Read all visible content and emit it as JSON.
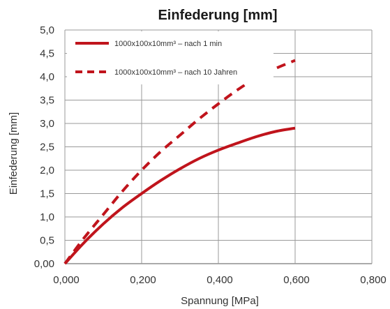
{
  "chart_data": {
    "type": "line",
    "title": "Einfederung [mm]",
    "xlabel": "Spannung [MPa]",
    "ylabel": "Einfederung [mm]",
    "xlim": [
      0,
      0.8
    ],
    "ylim": [
      0,
      5
    ],
    "x_ticks": [
      "0,000",
      "0,200",
      "0,400",
      "0,600",
      "0,800"
    ],
    "y_ticks": [
      "0,00",
      "0,5",
      "1,0",
      "1,5",
      "2,0",
      "2,5",
      "3,0",
      "3,5",
      "4,0",
      "4,5",
      "5,0"
    ],
    "grid": true,
    "legend_position": "top-left",
    "series": [
      {
        "name": "1000x100x10mm³ – nach 1 min",
        "style": "solid",
        "color": "#c0141c",
        "x": [
          0,
          0.05,
          0.1,
          0.15,
          0.2,
          0.25,
          0.3,
          0.35,
          0.4,
          0.45,
          0.5,
          0.55,
          0.6
        ],
        "y": [
          0,
          0.45,
          0.85,
          1.2,
          1.5,
          1.78,
          2.03,
          2.25,
          2.43,
          2.58,
          2.72,
          2.83,
          2.9
        ]
      },
      {
        "name": "1000x100x10mm³ – nach 10 Jahren",
        "style": "dashed",
        "color": "#c0141c",
        "x": [
          0,
          0.05,
          0.1,
          0.15,
          0.2,
          0.25,
          0.3,
          0.35,
          0.4,
          0.45,
          0.5,
          0.55,
          0.6
        ],
        "y": [
          0,
          0.55,
          1.05,
          1.55,
          2.0,
          2.4,
          2.75,
          3.1,
          3.42,
          3.72,
          3.98,
          4.18,
          4.35
        ]
      }
    ]
  }
}
